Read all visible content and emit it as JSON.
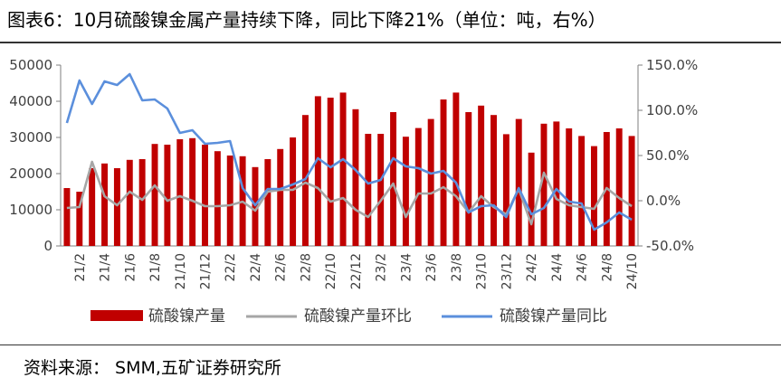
{
  "title": "图表6：10月硫酸镍金属产量持续下降，同比下降21%（单位：吨，右%）",
  "source": "资料来源：  SMM,五矿证券研究所",
  "colors": {
    "bar": "#c00000",
    "mom": "#a6a6a6",
    "yoy": "#5b8fdc",
    "axis": "#7f7f7f"
  },
  "chart_data": {
    "type": "bar+line",
    "x": [
      "21/1",
      "21/2",
      "21/3",
      "21/4",
      "21/5",
      "21/6",
      "21/7",
      "21/8",
      "21/9",
      "21/10",
      "21/11",
      "21/12",
      "22/1",
      "22/2",
      "22/3",
      "22/4",
      "22/5",
      "22/6",
      "22/7",
      "22/8",
      "22/9",
      "22/10",
      "22/11",
      "22/12",
      "23/1",
      "23/2",
      "23/3",
      "23/4",
      "23/5",
      "23/6",
      "23/7",
      "23/8",
      "23/9",
      "23/10",
      "23/11",
      "23/12",
      "24/1",
      "24/2",
      "24/3",
      "24/4",
      "24/5",
      "24/6",
      "24/7",
      "24/8",
      "24/9",
      "24/10"
    ],
    "x_tick_labels": [
      "21/2",
      "21/4",
      "21/6",
      "21/8",
      "21/10",
      "21/12",
      "22/2",
      "22/4",
      "22/6",
      "22/8",
      "22/10",
      "22/12",
      "23/2",
      "23/4",
      "23/6",
      "23/8",
      "23/10",
      "23/12",
      "24/2",
      "24/4",
      "24/6",
      "24/8",
      "24/10"
    ],
    "y_left": {
      "min": 0,
      "max": 50000,
      "ticks": [
        "0",
        "10000",
        "20000",
        "30000",
        "40000",
        "50000"
      ]
    },
    "y_right": {
      "min": -50,
      "max": 150,
      "ticks": [
        "-50.0%",
        "0.0%",
        "50.0%",
        "100.0%",
        "150.0%"
      ]
    },
    "series": [
      {
        "name": "硫酸镍产量",
        "kind": "bar",
        "axis": "left",
        "values": [
          16000,
          15000,
          21500,
          22800,
          21500,
          23800,
          24000,
          28200,
          28000,
          29500,
          29800,
          28000,
          26200,
          25000,
          24800,
          21800,
          24000,
          26800,
          30000,
          36200,
          41400,
          41000,
          42400,
          37800,
          31000,
          31000,
          37000,
          30200,
          32600,
          35100,
          40500,
          42400,
          37000,
          38800,
          36200,
          30900,
          35100,
          25800,
          33800,
          34400,
          32500,
          30400,
          27600,
          31500,
          32500,
          30400
        ]
      },
      {
        "name": "硫酸镍产量环比",
        "kind": "line",
        "axis": "right",
        "values": [
          -8,
          -7,
          43,
          5,
          -5,
          10,
          1,
          17,
          0,
          5,
          0,
          -6,
          -6,
          -5,
          -1,
          -11,
          10,
          12,
          12,
          20,
          14,
          -1,
          3,
          -10,
          -18,
          0,
          19,
          -18,
          8,
          8,
          15,
          5,
          -13,
          5,
          -7,
          -15,
          13,
          -26,
          31,
          2,
          -5,
          -7,
          -9,
          14,
          3,
          -6
        ]
      },
      {
        "name": "硫酸镍产量同比",
        "kind": "line",
        "axis": "right",
        "values": [
          86,
          133,
          107,
          132,
          128,
          140,
          111,
          112,
          102,
          75,
          78,
          63,
          64,
          66,
          14,
          -5,
          13,
          13,
          18,
          24,
          47,
          37,
          46,
          34,
          19,
          23,
          47,
          38,
          36,
          30,
          33,
          20,
          -13,
          -6,
          -5,
          -18,
          14,
          -15,
          -8,
          13,
          -1,
          -3,
          -32,
          -24,
          -13,
          -21
        ]
      }
    ],
    "legend_position": "bottom",
    "grid": false
  }
}
